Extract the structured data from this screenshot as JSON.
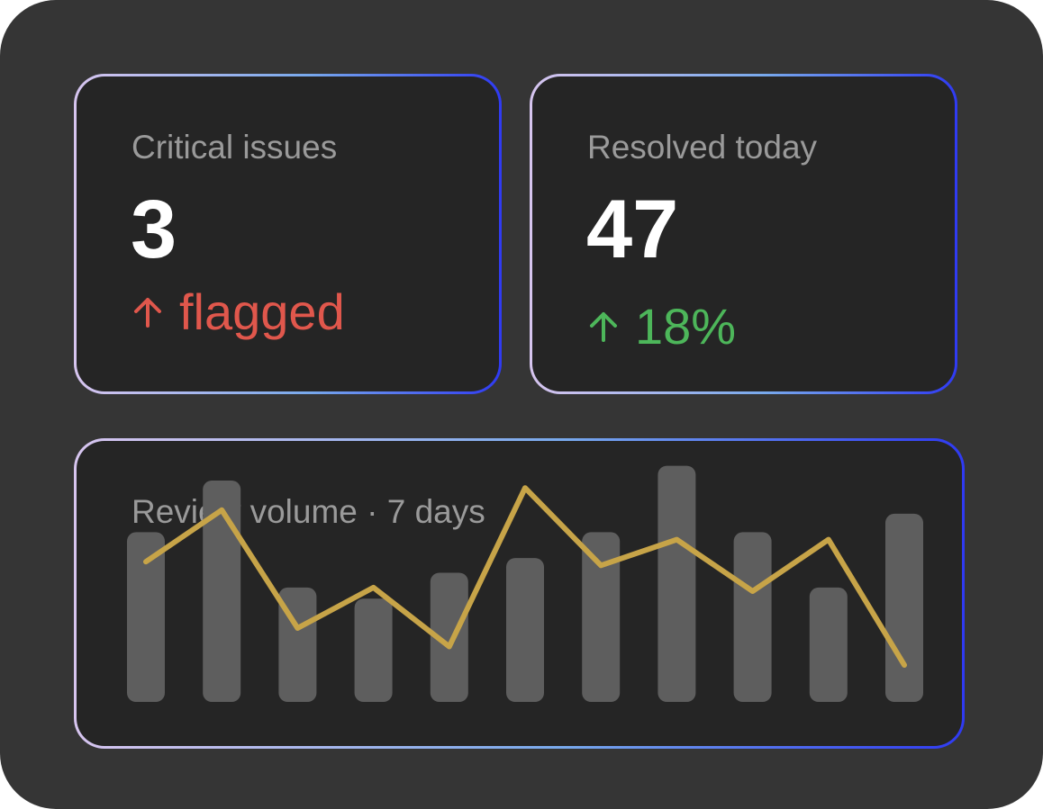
{
  "colors": {
    "background": "#353535",
    "card": "#252525",
    "label": "#9a9a9a",
    "value": "#ffffff",
    "alert": "#e0574c",
    "positive": "#4db65a",
    "bar": "#5e5e5e",
    "line": "#c7a448"
  },
  "critical": {
    "label": "Critical issues",
    "value": "3",
    "delta_icon": "arrow-up-icon",
    "delta_text": "flagged"
  },
  "resolved": {
    "label": "Resolved today",
    "value": "47",
    "delta_icon": "arrow-up-icon",
    "delta_text": "18%"
  },
  "volume": {
    "label": "Review volume · 7 days"
  },
  "chart_data": {
    "type": "bar",
    "bars": [
      0.46,
      0.6,
      0.31,
      0.28,
      0.35,
      0.39,
      0.46,
      0.64,
      0.46,
      0.31,
      0.51
    ],
    "line": [
      0.38,
      0.52,
      0.2,
      0.31,
      0.15,
      0.58,
      0.37,
      0.44,
      0.3,
      0.44,
      0.1
    ],
    "ylim": [
      0,
      0.7
    ],
    "grid": false,
    "legend": "none"
  }
}
